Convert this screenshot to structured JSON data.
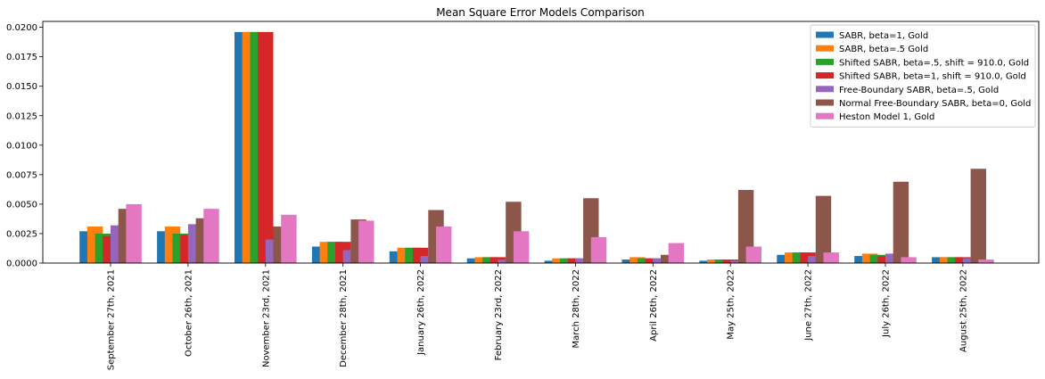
{
  "chart_data": {
    "type": "bar",
    "title": "Mean Square Error Models Comparison",
    "xlabel": "",
    "ylabel": "",
    "ylim": [
      0,
      0.0205
    ],
    "yticks": [
      "0.0000",
      "0.0025",
      "0.0050",
      "0.0075",
      "0.0100",
      "0.0125",
      "0.0150",
      "0.0175",
      "0.0200"
    ],
    "ytick_values": [
      0,
      0.0025,
      0.005,
      0.0075,
      0.01,
      0.0125,
      0.015,
      0.0175,
      0.02
    ],
    "grid": false,
    "legend_position": "top-right",
    "bar_mode": "grouped with overlap",
    "categories": [
      "September 27th, 2021",
      "October 26th, 2021",
      "November 23rd, 2021",
      "December 28th, 2021",
      "January 26th, 2022",
      "February 23rd, 2022",
      "March 28th, 2022",
      "April 26th, 2022",
      "May 25th, 2022",
      "June 27th, 2022",
      "July 26th, 2022",
      "August 25th, 2022"
    ],
    "series": [
      {
        "name": "SABR, beta=1, Gold",
        "color": "#1f77b4",
        "values": [
          0.0027,
          0.0027,
          0.0196,
          0.0014,
          0.001,
          0.0004,
          0.0002,
          0.0003,
          0.0002,
          0.0007,
          0.0006,
          0.0005
        ]
      },
      {
        "name": "SABR, beta=.5 Gold",
        "color": "#ff7f0e",
        "values": [
          0.0031,
          0.0031,
          0.0196,
          0.0018,
          0.0013,
          0.0005,
          0.0004,
          0.0005,
          0.0003,
          0.0009,
          0.0008,
          0.0005
        ]
      },
      {
        "name": "Shifted SABR, beta=.5, shift = 910.0, Gold",
        "color": "#2ca02c",
        "values": [
          0.0025,
          0.0025,
          0.0196,
          0.0018,
          0.0013,
          0.0005,
          0.0004,
          0.0004,
          0.0003,
          0.0009,
          0.0007,
          0.0005
        ]
      },
      {
        "name": "Shifted SABR, beta=1, shift = 910.0, Gold",
        "color": "#d62728",
        "values": [
          0.0023,
          0.0024,
          0.0196,
          0.0018,
          0.0013,
          0.0005,
          0.0004,
          0.0004,
          0.0003,
          0.0009,
          0.0006,
          0.0005
        ]
      },
      {
        "name": "Free-Boundary SABR, beta=.5, Gold",
        "color": "#9467bd",
        "values": [
          0.0032,
          0.0033,
          0.002,
          0.0011,
          0.0006,
          0.0003,
          0.0004,
          0.0004,
          0.0002,
          0.0006,
          0.0008,
          0.0004
        ]
      },
      {
        "name": "Normal Free-Boundary SABR, beta=0, Gold",
        "color": "#8c564b",
        "values": [
          0.0046,
          0.0038,
          0.0031,
          0.0037,
          0.0045,
          0.0052,
          0.0055,
          0.0007,
          0.0062,
          0.0057,
          0.0069,
          0.008
        ]
      },
      {
        "name": "Heston Model 1, Gold",
        "color": "#e377c2",
        "values": [
          0.005,
          0.0046,
          0.0041,
          0.0036,
          0.0031,
          0.0027,
          0.0022,
          0.0017,
          0.0014,
          0.0009,
          0.0005,
          0.0003
        ]
      }
    ]
  }
}
